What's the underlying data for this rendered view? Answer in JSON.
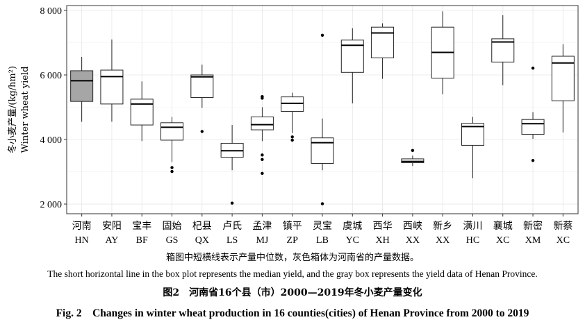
{
  "figure": {
    "note_zh": "箱图中短横线表示产量中位数，灰色箱体为河南省的产量数据。",
    "note_en": "The short horizontal line in the box plot represents the median yield, and the gray box represents the yield data of Henan Province.",
    "title_zh": "图2　河南省16个县（市）2000—2019年冬小麦产量变化",
    "title_en": "Fig. 2　Changes in winter wheat production in 16 counties(cities) of Henan Province from 2000 to 2019"
  },
  "chart_data": {
    "type": "box",
    "ylabel_zh": "冬小麦产量/(kg/hm²)",
    "ylabel_en": "Winter wheat yield",
    "ylim": [
      1700,
      8150
    ],
    "yticks": [
      2000,
      4000,
      6000,
      8000
    ],
    "ytick_labels": [
      "2 000",
      "4 000",
      "6 000",
      "8 000"
    ],
    "grid": true,
    "highlight_color": "#a6a6a6",
    "categories": [
      {
        "zh": "河南",
        "code": "HN",
        "min": 4550,
        "q1": 5180,
        "median": 5820,
        "q3": 6130,
        "max": 6560,
        "outliers": [],
        "highlight": true
      },
      {
        "zh": "安阳",
        "code": "AY",
        "min": 4550,
        "q1": 5100,
        "median": 5950,
        "q3": 6150,
        "max": 7100,
        "outliers": []
      },
      {
        "zh": "宝丰",
        "code": "BF",
        "min": 3950,
        "q1": 4450,
        "median": 5100,
        "q3": 5250,
        "max": 5800,
        "outliers": []
      },
      {
        "zh": "固始",
        "code": "GS",
        "min": 3300,
        "q1": 3980,
        "median": 4380,
        "q3": 4520,
        "max": 4700,
        "outliers": [
          3130,
          3010
        ]
      },
      {
        "zh": "杞县",
        "code": "QX",
        "min": 4980,
        "q1": 5300,
        "median": 5940,
        "q3": 6000,
        "max": 6320,
        "outliers": [
          4250
        ]
      },
      {
        "zh": "卢氏",
        "code": "LS",
        "min": 3050,
        "q1": 3450,
        "median": 3650,
        "q3": 3880,
        "max": 4450,
        "outliers": [
          2030
        ]
      },
      {
        "zh": "孟津",
        "code": "MJ",
        "min": 3950,
        "q1": 4300,
        "median": 4460,
        "q3": 4700,
        "max": 5000,
        "outliers": [
          5330,
          5280,
          3520,
          3380,
          2950
        ]
      },
      {
        "zh": "镇平",
        "code": "ZP",
        "min": 4200,
        "q1": 4870,
        "median": 5120,
        "q3": 5320,
        "max": 5450,
        "outliers": [
          4080,
          3980
        ]
      },
      {
        "zh": "灵宝",
        "code": "LB",
        "min": 3050,
        "q1": 3260,
        "median": 3900,
        "q3": 4050,
        "max": 4650,
        "outliers": [
          7230,
          2010
        ]
      },
      {
        "zh": "虞城",
        "code": "YC",
        "min": 5120,
        "q1": 6080,
        "median": 6920,
        "q3": 7080,
        "max": 7450,
        "outliers": []
      },
      {
        "zh": "西华",
        "code": "XH",
        "min": 5880,
        "q1": 6530,
        "median": 7300,
        "q3": 7480,
        "max": 7600,
        "outliers": []
      },
      {
        "zh": "西峡",
        "code": "XX",
        "min": 3180,
        "q1": 3280,
        "median": 3320,
        "q3": 3400,
        "max": 3500,
        "outliers": [
          3660
        ]
      },
      {
        "zh": "新乡",
        "code": "XX",
        "min": 5400,
        "q1": 5900,
        "median": 6700,
        "q3": 7480,
        "max": 7970,
        "outliers": []
      },
      {
        "zh": "潢川",
        "code": "HC",
        "min": 2800,
        "q1": 3820,
        "median": 4400,
        "q3": 4500,
        "max": 4700,
        "outliers": []
      },
      {
        "zh": "襄城",
        "code": "XC",
        "min": 5680,
        "q1": 6400,
        "median": 7020,
        "q3": 7120,
        "max": 7850,
        "outliers": []
      },
      {
        "zh": "新密",
        "code": "XM",
        "min": 4020,
        "q1": 4160,
        "median": 4490,
        "q3": 4620,
        "max": 4850,
        "outliers": [
          6210,
          3350
        ]
      },
      {
        "zh": "新蔡",
        "code": "XC",
        "min": 4220,
        "q1": 5200,
        "median": 6370,
        "q3": 6580,
        "max": 6950,
        "outliers": []
      }
    ]
  }
}
